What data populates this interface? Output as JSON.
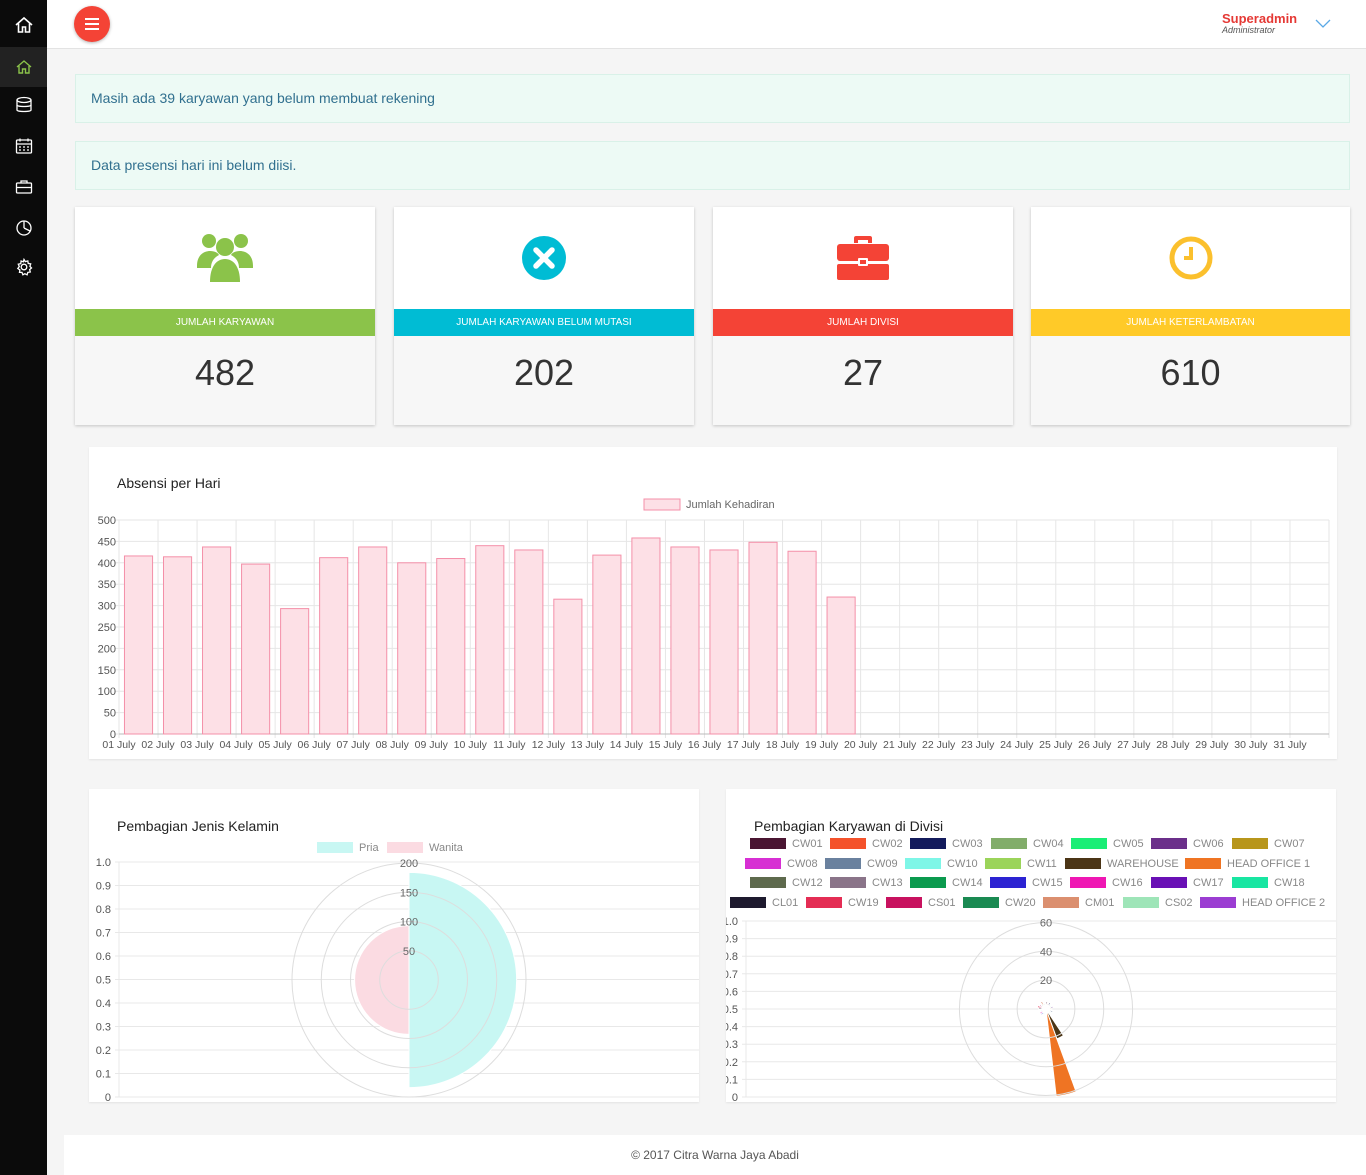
{
  "sidebar": {
    "items": [
      {
        "icon": "home-icon",
        "active": false
      },
      {
        "icon": "dashboard-home-icon",
        "active": true
      },
      {
        "icon": "database-icon",
        "active": false
      },
      {
        "icon": "calendar-icon",
        "active": false
      },
      {
        "icon": "briefcase-icon",
        "active": false
      },
      {
        "icon": "pie-chart-icon",
        "active": false
      },
      {
        "icon": "gear-icon",
        "active": false
      }
    ]
  },
  "header": {
    "user_name": "Superadmin",
    "user_role": "Administrator"
  },
  "alerts": {
    "rekening": "Masih ada 39 karyawan yang belum membuat rekening",
    "presensi": "Data presensi hari ini belum diisi."
  },
  "stats": [
    {
      "label": "JUMLAH KARYAWAN",
      "value": "482",
      "color": "#8bc34a",
      "icon": "users-icon"
    },
    {
      "label": "JUMLAH KARYAWAN BELUM MUTASI",
      "value": "202",
      "color": "#00bcd4",
      "icon": "close-circle-icon"
    },
    {
      "label": "JUMLAH DIVISI",
      "value": "27",
      "color": "#f44336",
      "icon": "briefcase-icon"
    },
    {
      "label": "JUMLAH KETERLAMBATAN",
      "value": "610",
      "color": "#ffca28",
      "icon": "clock-icon"
    }
  ],
  "panels": {
    "absensi_title": "Absensi per Hari",
    "gender_title": "Pembagian Jenis Kelamin",
    "divisi_title": "Pembagian Karyawan di Divisi"
  },
  "chart_data": [
    {
      "type": "bar",
      "title": "Absensi per Hari",
      "categories": [
        "01 July",
        "02 July",
        "03 July",
        "04 July",
        "05 July",
        "06 July",
        "07 July",
        "08 July",
        "09 July",
        "10 July",
        "11 July",
        "12 July",
        "13 July",
        "14 July",
        "15 July",
        "16 July",
        "17 July",
        "18 July",
        "19 July",
        "20 July",
        "21 July",
        "22 July",
        "23 July",
        "24 July",
        "25 July",
        "26 July",
        "27 July",
        "28 July",
        "29 July",
        "30 July",
        "31 July"
      ],
      "series": [
        {
          "name": "Jumlah Kehadiran",
          "values": [
            416,
            414,
            437,
            397,
            293,
            412,
            437,
            400,
            410,
            440,
            430,
            315,
            418,
            458,
            437,
            430,
            448,
            427,
            320,
            null,
            null,
            null,
            null,
            null,
            null,
            null,
            null,
            null,
            null,
            null,
            null
          ]
        }
      ],
      "ylim": [
        0,
        500
      ],
      "yticks": [
        0,
        50,
        100,
        150,
        200,
        250,
        300,
        350,
        400,
        450,
        500
      ],
      "legend": "top",
      "grid": true,
      "colors": {
        "fill": "#fde0e6",
        "stroke": "#f48fa8"
      }
    },
    {
      "type": "polarArea",
      "title": "Pembagian Jenis Kelamin",
      "categories": [
        "Pria",
        "Wanita"
      ],
      "values": [
        184,
        93
      ],
      "rticks": [
        50,
        100,
        150,
        200
      ],
      "rmax": 200,
      "colors": [
        "#c8f7f3",
        "#fbdbe2"
      ],
      "side_axis": [
        "0",
        "0.1",
        "0.2",
        "0.3",
        "0.4",
        "0.5",
        "0.6",
        "0.7",
        "0.8",
        "0.9",
        "1.0"
      ]
    },
    {
      "type": "polarArea",
      "title": "Pembagian Karyawan di Divisi",
      "categories": [
        "CW01",
        "CW02",
        "CW03",
        "CW04",
        "CW05",
        "CW06",
        "CW07",
        "CW08",
        "CW09",
        "CW10",
        "CW11",
        "WAREHOUSE",
        "HEAD OFFICE 1",
        "CW12",
        "CW13",
        "CW14",
        "CW15",
        "CW16",
        "CW17",
        "CW18",
        "CL01",
        "CW19",
        "CS01",
        "CW20",
        "CM01",
        "CS02",
        "HEAD OFFICE 2"
      ],
      "values": [
        5,
        4,
        5,
        4,
        4,
        5,
        4,
        4,
        5,
        4,
        4,
        22,
        61,
        3,
        4,
        4,
        5,
        5,
        4,
        4,
        5,
        6,
        5,
        4,
        6,
        4,
        3
      ],
      "rticks": [
        20,
        40,
        60
      ],
      "rmax": 61,
      "colors": [
        "#4a1532",
        "#f4522b",
        "#131b5c",
        "#82ad6a",
        "#1aee76",
        "#6b2f8a",
        "#b8961b",
        "#d72fd3",
        "#6a819e",
        "#7ef6e7",
        "#9bd45a",
        "#4b3516",
        "#ef7423",
        "#5e6a4d",
        "#8a7489",
        "#0b9a4e",
        "#2c23d2",
        "#ef17b3",
        "#6910b5",
        "#18e6a2",
        "#1e1a2e",
        "#e42d54",
        "#c8125f",
        "#1a8a52",
        "#db8f6f",
        "#9ee5b8",
        "#9b3dd2"
      ],
      "side_axis": [
        "0",
        "0.1",
        "0.2",
        "0.3",
        "0.4",
        "0.5",
        "0.6",
        "0.7",
        "0.8",
        "0.9",
        "1.0"
      ]
    }
  ],
  "footer": "© 2017 Citra Warna Jaya Abadi"
}
